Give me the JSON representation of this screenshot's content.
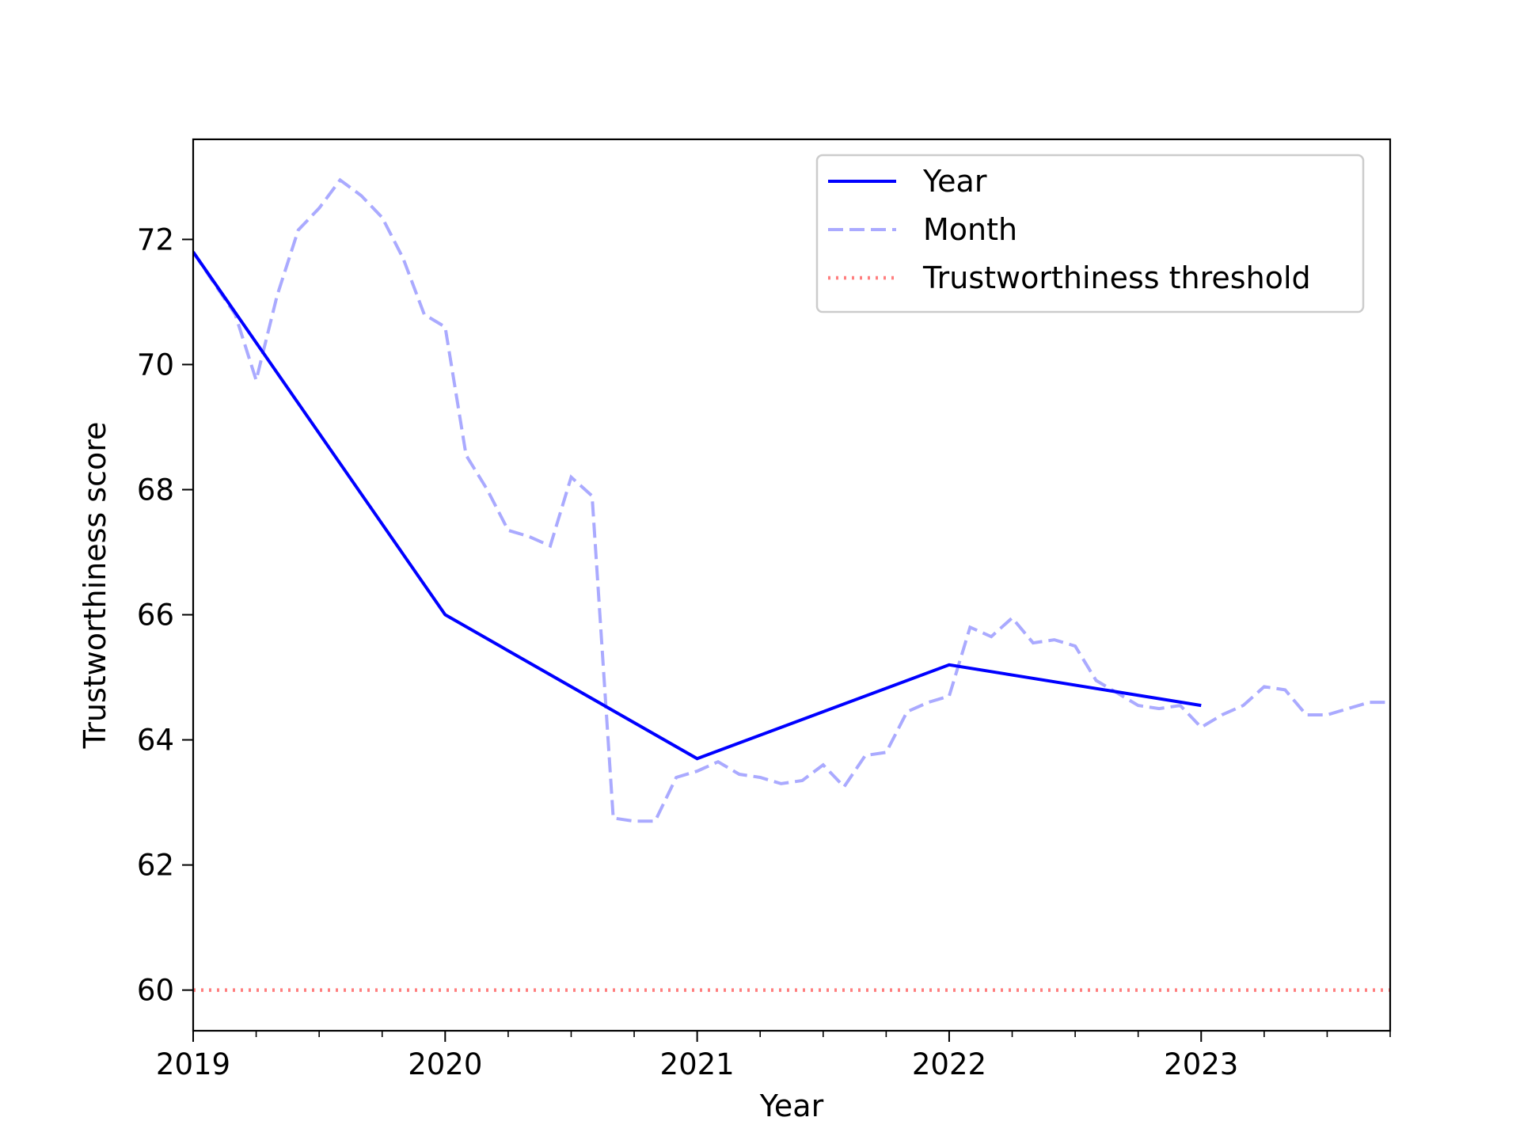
{
  "chart_data": {
    "type": "line",
    "title": "",
    "xlabel": "Year",
    "ylabel": "Trustworthiness score",
    "xlim": [
      2019.0,
      2023.75
    ],
    "ylim": [
      59.35,
      73.6
    ],
    "x_ticks": [
      2019,
      2020,
      2021,
      2022,
      2023
    ],
    "x_tick_labels": [
      "2019",
      "2020",
      "2021",
      "2022",
      "2023"
    ],
    "x_minor_ticks": [
      2019.25,
      2019.5,
      2019.75,
      2020.25,
      2020.5,
      2020.75,
      2021.25,
      2021.5,
      2021.75,
      2022.25,
      2022.5,
      2022.75,
      2023.25,
      2023.5,
      2023.75
    ],
    "y_ticks": [
      60,
      62,
      64,
      66,
      68,
      70,
      72
    ],
    "y_tick_labels": [
      "60",
      "62",
      "64",
      "66",
      "68",
      "70",
      "72"
    ],
    "grid": false,
    "legend_position": "top-right",
    "series": [
      {
        "name": "Year",
        "color": "#0000ff",
        "style": "solid",
        "x": [
          2019.0,
          2020.0,
          2021.0,
          2022.0,
          2023.0
        ],
        "values": [
          71.8,
          66.0,
          63.7,
          65.2,
          64.55
        ]
      },
      {
        "name": "Month",
        "color": "#aaaaff",
        "style": "dashed",
        "x": [
          2019.0,
          2019.083,
          2019.167,
          2019.25,
          2019.333,
          2019.417,
          2019.5,
          2019.583,
          2019.667,
          2019.75,
          2019.833,
          2019.917,
          2020.0,
          2020.083,
          2020.167,
          2020.25,
          2020.333,
          2020.417,
          2020.5,
          2020.583,
          2020.667,
          2020.75,
          2020.833,
          2020.917,
          2021.0,
          2021.083,
          2021.167,
          2021.25,
          2021.333,
          2021.417,
          2021.5,
          2021.583,
          2021.667,
          2021.75,
          2021.833,
          2021.917,
          2022.0,
          2022.083,
          2022.167,
          2022.25,
          2022.333,
          2022.417,
          2022.5,
          2022.583,
          2022.667,
          2022.75,
          2022.833,
          2022.917,
          2023.0,
          2023.083,
          2023.167,
          2023.25,
          2023.333,
          2023.417,
          2023.5,
          2023.583,
          2023.667,
          2023.75
        ],
        "values": [
          71.8,
          71.3,
          70.8,
          69.75,
          71.1,
          72.15,
          72.5,
          72.95,
          72.7,
          72.35,
          71.7,
          70.8,
          70.6,
          68.55,
          68.0,
          67.35,
          67.25,
          67.1,
          68.2,
          67.9,
          62.75,
          62.7,
          62.7,
          63.4,
          63.5,
          63.65,
          63.45,
          63.4,
          63.3,
          63.35,
          63.6,
          63.25,
          63.75,
          63.8,
          64.45,
          64.6,
          64.7,
          65.8,
          65.65,
          65.95,
          65.55,
          65.6,
          65.5,
          64.95,
          64.75,
          64.55,
          64.5,
          64.55,
          64.2,
          64.4,
          64.55,
          64.85,
          64.8,
          64.4,
          64.4,
          64.5,
          64.6,
          64.6
        ]
      },
      {
        "name": "Trustworthiness threshold",
        "color": "#ff7f7f",
        "style": "dotted",
        "x": [
          2019.0,
          2023.75
        ],
        "values": [
          60,
          60
        ]
      }
    ]
  }
}
